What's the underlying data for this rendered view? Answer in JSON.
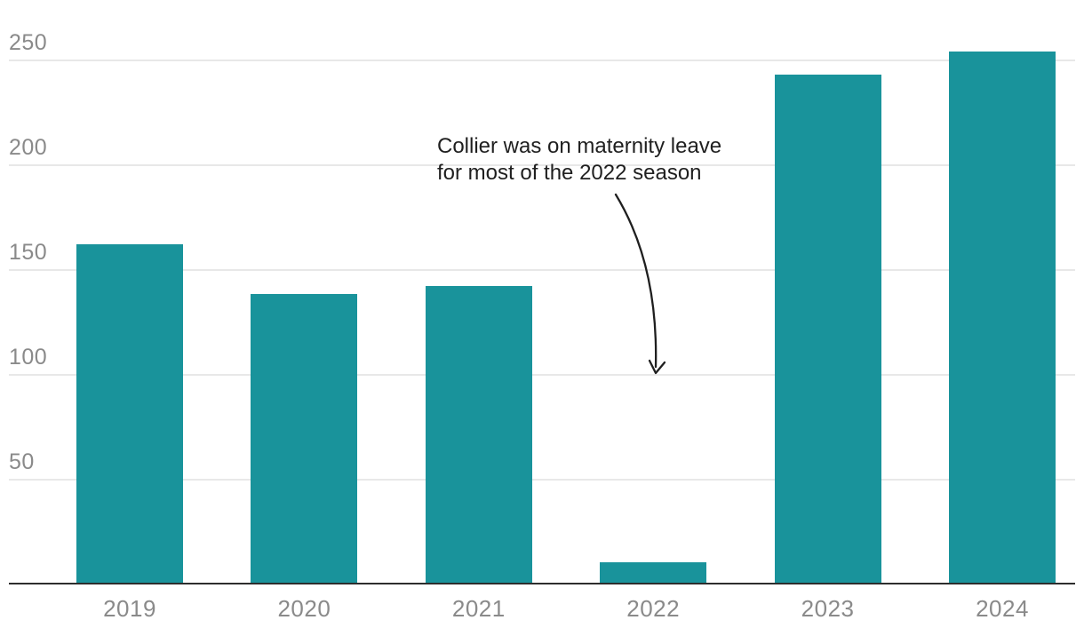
{
  "chart_data": {
    "type": "bar",
    "categories": [
      "2019",
      "2020",
      "2021",
      "2022",
      "2023",
      "2024"
    ],
    "values": [
      162,
      138,
      142,
      10,
      243,
      254
    ],
    "title": "",
    "xlabel": "",
    "ylabel": "",
    "ylim": [
      0,
      260
    ],
    "yticks": [
      50,
      100,
      150,
      200,
      250
    ],
    "grid": true,
    "legend_position": "none",
    "annotation": {
      "lines": [
        "Collier was on maternity leave",
        "for most of the 2022 season"
      ],
      "target_category": "2022"
    }
  },
  "colors": {
    "bar": "#19939B",
    "gridline": "#E8E8E8",
    "axis_line": "#2D2D2D",
    "tick_label": "#8A8A8A",
    "annotation_text": "#1F1F1F",
    "background": "#FFFFFF"
  }
}
